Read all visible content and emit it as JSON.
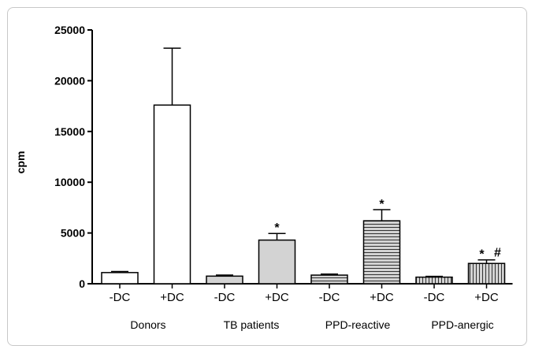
{
  "chart_data": {
    "type": "bar",
    "ylabel": "cpm",
    "xlabel": "",
    "title": "",
    "ylim": [
      0,
      25000
    ],
    "yticks": [
      "0",
      "5000",
      "10000",
      "15000",
      "20000",
      "25000"
    ],
    "categories": [
      "-DC",
      "+DC",
      "-DC",
      "+DC",
      "-DC",
      "+DC",
      "-DC",
      "+DC"
    ],
    "groups": [
      "Donors",
      "TB patients",
      "PPD-reactive",
      "PPD-anergic"
    ],
    "values": [
      1100,
      17600,
      750,
      4300,
      850,
      6200,
      650,
      2000
    ],
    "errors": [
      100,
      5600,
      100,
      650,
      100,
      1100,
      80,
      350
    ],
    "fills": [
      "white",
      "white",
      "solid",
      "solid",
      "horizontal",
      "horizontal",
      "vertical",
      "vertical"
    ],
    "colors": {
      "bar_solid": "#d3d3d3",
      "hatch_fill": "#d3d3d3",
      "stroke": "#000000"
    },
    "annotations": [
      {
        "bar_index": 3,
        "text": "*"
      },
      {
        "bar_index": 5,
        "text": "*"
      },
      {
        "bar_index": 7,
        "text": "*"
      },
      {
        "bar_index": 7,
        "text": "#"
      }
    ],
    "grid": false,
    "legend": "none"
  }
}
